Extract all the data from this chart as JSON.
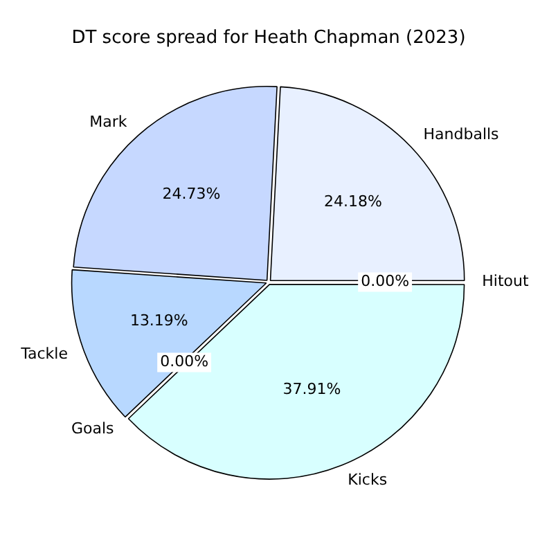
{
  "chart_data": {
    "type": "pie",
    "title": "DT score spread for Heath Chapman (2023)",
    "categories": [
      "Hitout",
      "Kicks",
      "Goals",
      "Tackle",
      "Mark",
      "Handballs"
    ],
    "values": [
      0,
      37.91,
      0,
      13.19,
      24.73,
      24.18
    ],
    "colors": [
      "#d8ffff",
      "#d8ffff",
      "#b8d8ff",
      "#b8d8ff",
      "#c6d8ff",
      "#e8f0ff"
    ],
    "value_labels": [
      "0.00%",
      "37.91%",
      "0.00%",
      "13.19%",
      "24.73%",
      "24.18%"
    ],
    "legend": false
  }
}
